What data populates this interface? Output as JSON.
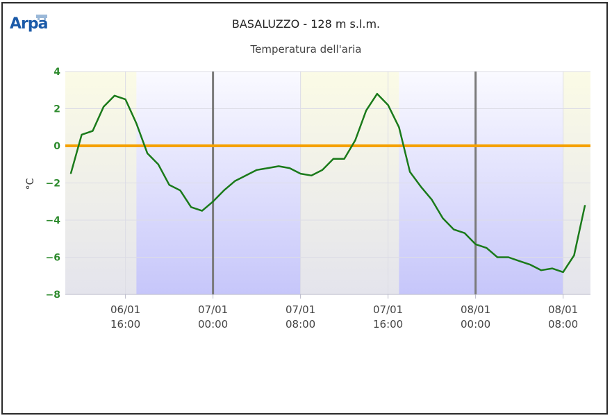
{
  "header": {
    "logo_text": "Arpa",
    "title": "BASALUZZO - 128 m s.l.m.",
    "subtitle": "Temperatura dell'aria"
  },
  "chart_data": {
    "type": "line",
    "title": "BASALUZZO - 128 m s.l.m.",
    "subtitle": "Temperatura dell'aria",
    "ylabel": "°C",
    "xlabel": "",
    "ylim": [
      -8,
      4
    ],
    "yticks": [
      4,
      2,
      0,
      -2,
      -4,
      -6,
      -8
    ],
    "xlim": [
      "06/01 10:30",
      "08/01 09:00"
    ],
    "xticks": [
      {
        "date": "06/01",
        "time": "16:00"
      },
      {
        "date": "07/01",
        "time": "00:00"
      },
      {
        "date": "07/01",
        "time": "08:00"
      },
      {
        "date": "07/01",
        "time": "16:00"
      },
      {
        "date": "08/01",
        "time": "00:00"
      },
      {
        "date": "08/01",
        "time": "08:00"
      }
    ],
    "night_bands": [
      [
        "06/01 17:00",
        "07/01 08:00"
      ],
      [
        "07/01 17:00",
        "08/01 08:00"
      ]
    ],
    "midnight_lines": [
      "07/01 00:00",
      "08/01 00:00"
    ],
    "reference_line": {
      "y": 0,
      "color": "#f5a100"
    },
    "series": [
      {
        "color": "#1a7a1a",
        "points": [
          [
            "06/01 11:00",
            -1.5
          ],
          [
            "06/01 12:00",
            0.6
          ],
          [
            "06/01 13:00",
            0.8
          ],
          [
            "06/01 14:00",
            2.1
          ],
          [
            "06/01 15:00",
            2.7
          ],
          [
            "06/01 16:00",
            2.5
          ],
          [
            "06/01 17:00",
            1.2
          ],
          [
            "06/01 18:00",
            -0.4
          ],
          [
            "06/01 19:00",
            -1.0
          ],
          [
            "06/01 20:00",
            -2.1
          ],
          [
            "06/01 21:00",
            -2.4
          ],
          [
            "06/01 22:00",
            -3.3
          ],
          [
            "06/01 23:00",
            -3.5
          ],
          [
            "07/01 00:00",
            -3.0
          ],
          [
            "07/01 01:00",
            -2.4
          ],
          [
            "07/01 02:00",
            -1.9
          ],
          [
            "07/01 03:00",
            -1.6
          ],
          [
            "07/01 04:00",
            -1.3
          ],
          [
            "07/01 05:00",
            -1.2
          ],
          [
            "07/01 06:00",
            -1.1
          ],
          [
            "07/01 07:00",
            -1.2
          ],
          [
            "07/01 08:00",
            -1.5
          ],
          [
            "07/01 09:00",
            -1.6
          ],
          [
            "07/01 10:00",
            -1.3
          ],
          [
            "07/01 11:00",
            -0.7
          ],
          [
            "07/01 12:00",
            -0.7
          ],
          [
            "07/01 13:00",
            0.3
          ],
          [
            "07/01 14:00",
            1.9
          ],
          [
            "07/01 15:00",
            2.8
          ],
          [
            "07/01 16:00",
            2.2
          ],
          [
            "07/01 17:00",
            1.0
          ],
          [
            "07/01 18:00",
            -1.4
          ],
          [
            "07/01 19:00",
            -2.2
          ],
          [
            "07/01 20:00",
            -2.9
          ],
          [
            "07/01 21:00",
            -3.9
          ],
          [
            "07/01 22:00",
            -4.5
          ],
          [
            "07/01 23:00",
            -4.7
          ],
          [
            "08/01 00:00",
            -5.3
          ],
          [
            "08/01 01:00",
            -5.5
          ],
          [
            "08/01 02:00",
            -6.0
          ],
          [
            "08/01 03:00",
            -6.0
          ],
          [
            "08/01 04:00",
            -6.2
          ],
          [
            "08/01 05:00",
            -6.4
          ],
          [
            "08/01 06:00",
            -6.7
          ],
          [
            "08/01 07:00",
            -6.6
          ],
          [
            "08/01 08:00",
            -6.8
          ],
          [
            "08/01 09:00",
            -5.9
          ],
          [
            "08/01 10:00",
            -3.2
          ]
        ]
      }
    ],
    "grid": true,
    "legend": "none"
  }
}
